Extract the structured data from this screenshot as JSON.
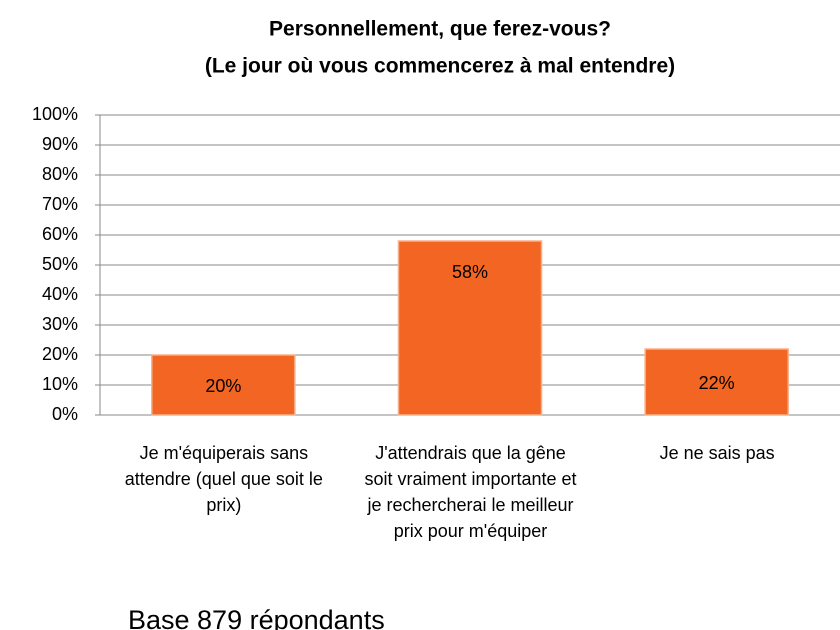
{
  "chart_data": {
    "type": "bar",
    "title": "Personnellement, que ferez-vous?",
    "subtitle": "(Le jour où vous commencerez à mal entendre)",
    "categories": [
      "Je m'équiperais sans attendre (quel que soit le prix)",
      "J'attendrais que la gêne soit vraiment importante et je rechercherai le meilleur prix pour m'équiper",
      "Je ne sais pas"
    ],
    "values": [
      20,
      58,
      22
    ],
    "value_labels": [
      "20%",
      "58%",
      "22%"
    ],
    "color": "#f26522",
    "ylim": [
      0,
      100
    ],
    "yticks": [
      {
        "value": 0,
        "label": "0%"
      },
      {
        "value": 10,
        "label": "10%"
      },
      {
        "value": 20,
        "label": "20%"
      },
      {
        "value": 30,
        "label": "30%"
      },
      {
        "value": 40,
        "label": "40%"
      },
      {
        "value": 50,
        "label": "50%"
      },
      {
        "value": 60,
        "label": "60%"
      },
      {
        "value": 70,
        "label": "70%"
      },
      {
        "value": 80,
        "label": "80%"
      },
      {
        "value": 90,
        "label": "90%"
      },
      {
        "value": 100,
        "label": "100%"
      }
    ],
    "grid": true,
    "note": "Base 879 répondants"
  }
}
